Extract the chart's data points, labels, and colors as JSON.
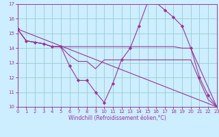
{
  "xlabel": "Windchill (Refroidissement éolien,°C)",
  "xlim": [
    0,
    23
  ],
  "ylim": [
    10,
    17
  ],
  "yticks": [
    10,
    11,
    12,
    13,
    14,
    15,
    16,
    17
  ],
  "xticks": [
    0,
    1,
    2,
    3,
    4,
    5,
    6,
    7,
    8,
    9,
    10,
    11,
    12,
    13,
    14,
    15,
    16,
    17,
    18,
    19,
    20,
    21,
    22,
    23
  ],
  "bg_color": "#cceeff",
  "line_color": "#993399",
  "grid_color": "#99cccc",
  "lines": [
    {
      "x": [
        0,
        1,
        2,
        3,
        4,
        5,
        6,
        7,
        8,
        9,
        10,
        11,
        12,
        13,
        14,
        15,
        16,
        17,
        18,
        19,
        20,
        21,
        22,
        23
      ],
      "y": [
        15.3,
        14.5,
        14.4,
        14.3,
        14.1,
        14.1,
        12.8,
        11.8,
        11.8,
        11.0,
        10.3,
        11.6,
        13.2,
        14.0,
        15.5,
        17.1,
        17.1,
        16.6,
        16.1,
        15.5,
        14.0,
        12.0,
        10.8,
        10.0
      ],
      "marker": true
    },
    {
      "x": [
        0,
        1,
        2,
        3,
        4,
        10,
        11,
        12,
        13,
        14,
        15,
        16,
        17,
        18,
        19,
        20,
        23
      ],
      "y": [
        15.3,
        14.5,
        14.4,
        14.3,
        14.1,
        14.1,
        14.1,
        14.1,
        14.1,
        14.1,
        14.1,
        14.1,
        14.1,
        14.1,
        14.0,
        14.0,
        10.0
      ],
      "marker": false
    },
    {
      "x": [
        0,
        23
      ],
      "y": [
        15.3,
        10.0
      ],
      "marker": false
    },
    {
      "x": [
        0,
        1,
        2,
        3,
        4,
        5,
        6,
        7,
        8,
        9,
        10,
        11,
        12,
        13,
        14,
        15,
        16,
        17,
        18,
        19,
        20,
        21,
        22,
        23
      ],
      "y": [
        15.3,
        14.5,
        14.4,
        14.3,
        14.1,
        14.1,
        13.5,
        13.1,
        13.1,
        12.6,
        13.2,
        13.2,
        13.2,
        13.2,
        13.2,
        13.2,
        13.2,
        13.2,
        13.2,
        13.2,
        13.2,
        11.8,
        10.5,
        10.0
      ],
      "marker": false
    }
  ]
}
